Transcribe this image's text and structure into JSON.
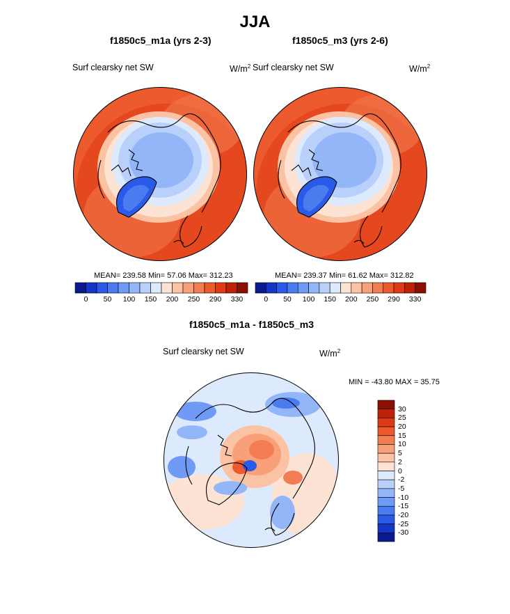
{
  "title": "JJA",
  "panels": [
    {
      "title": "f1850c5_m1a (yrs 2-3)",
      "variable": "Surf clearsky net SW",
      "units": "W/m",
      "units_sup": "2",
      "stats": "MEAN= 239.58  Min=  57.06  Max= 312.23",
      "colorbar_labels": [
        "0",
        "50",
        "100",
        "150",
        "200",
        "250",
        "290",
        "330"
      ]
    },
    {
      "title": "f1850c5_m3 (yrs 2-6)",
      "variable": "Surf clearsky net SW",
      "units": "W/m",
      "units_sup": "2",
      "stats": "MEAN= 239.37  Min=  61.62  Max= 312.82",
      "colorbar_labels": [
        "0",
        "50",
        "100",
        "150",
        "200",
        "250",
        "290",
        "330"
      ]
    }
  ],
  "diff": {
    "title": "f1850c5_m1a - f1850c5_m3",
    "variable": "Surf clearsky net SW",
    "units": "W/m",
    "units_sup": "2",
    "stats": "MIN = -43.80 MAX =  35.75",
    "colorbar_labels": [
      "30",
      "25",
      "20",
      "15",
      "10",
      "5",
      "2",
      "0",
      "-2",
      "-5",
      "-10",
      "-15",
      "-20",
      "-25",
      "-30"
    ]
  },
  "colors": {
    "abs_scale": [
      "#0a1a8c",
      "#1437c8",
      "#2a5ae8",
      "#4a7cf0",
      "#6f9af5",
      "#93b6f8",
      "#b8d0fa",
      "#dde9fc",
      "#fde3d3",
      "#fbc3a3",
      "#f8a07a",
      "#f37d52",
      "#ed5a2e",
      "#de3a14",
      "#bd2208",
      "#8c0f03"
    ],
    "diff_scale": [
      "#8c0f03",
      "#bd2208",
      "#de3a14",
      "#ed5a2e",
      "#f37d52",
      "#f8a07a",
      "#fbc3a3",
      "#fde3d3",
      "#dde9fc",
      "#b8d0fa",
      "#93b6f8",
      "#6f9af5",
      "#4a7cf0",
      "#2a5ae8",
      "#1437c8",
      "#0a1a8c"
    ]
  }
}
